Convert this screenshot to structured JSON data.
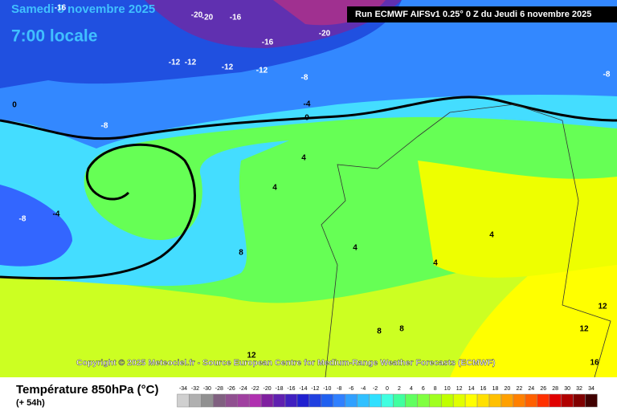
{
  "header": {
    "date": "Samedi 8 novembre 2025",
    "time": "7:00 locale",
    "run": "Run ECMWF AIFSv1 0.25° 0 Z du Jeudi 6 novembre 2025"
  },
  "copyright": "Copyright © 2025 Meteociel.fr - Source European Centre for Medium-Range Weather Forecasts (ECMWF)",
  "footer": {
    "title": "Température 850hPa (°C)",
    "lead": "(+ 54h)"
  },
  "legend": {
    "labels": [
      -34,
      -32,
      -30,
      -28,
      -26,
      -24,
      -22,
      -20,
      -18,
      -16,
      -14,
      -12,
      -10,
      -8,
      -6,
      -4,
      -2,
      0,
      2,
      4,
      6,
      8,
      10,
      12,
      14,
      16,
      18,
      20,
      22,
      24,
      26,
      28,
      30,
      32,
      34
    ],
    "colors": [
      "#d0d0d0",
      "#b0b0b0",
      "#909090",
      "#806080",
      "#905090",
      "#a040a0",
      "#b030b0",
      "#8020a0",
      "#6020b0",
      "#4020c0",
      "#2020d0",
      "#2040e0",
      "#2060f0",
      "#3080ff",
      "#30a0ff",
      "#30c0ff",
      "#30e0ff",
      "#40ffe0",
      "#40ffa0",
      "#60ff60",
      "#80ff40",
      "#a0ff20",
      "#c0ff00",
      "#e0ff00",
      "#ffff00",
      "#ffe000",
      "#ffc000",
      "#ffa000",
      "#ff8000",
      "#ff6000",
      "#ff3000",
      "#e00000",
      "#b00000",
      "#800000",
      "#400000"
    ]
  },
  "contour_labels": [
    -16,
    -20,
    -20,
    -16,
    -16,
    -20,
    -12,
    -12,
    -12,
    -12,
    -8,
    -8,
    -8,
    -4,
    0,
    0,
    4,
    4,
    4,
    4,
    4,
    -8,
    -4,
    8,
    8,
    8,
    12,
    12,
    12,
    16
  ]
}
